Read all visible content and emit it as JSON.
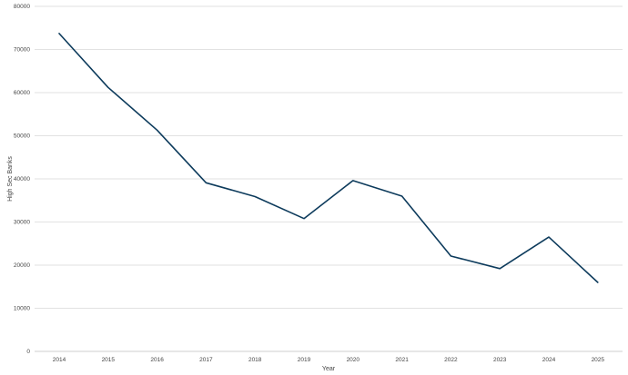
{
  "chart_data": {
    "type": "line",
    "title": "",
    "xlabel": "Year",
    "ylabel": "High Sec Banks",
    "categories": [
      "2014",
      "2015",
      "2016",
      "2017",
      "2018",
      "2019",
      "2020",
      "2021",
      "2022",
      "2023",
      "2024",
      "2025"
    ],
    "series": [
      {
        "values": [
          73700,
          61200,
          51300,
          39100,
          35900,
          30800,
          39600,
          36000,
          22100,
          19200,
          26500,
          16000
        ],
        "color": "#0d3b5c"
      }
    ],
    "ylim": [
      0,
      80000
    ],
    "yticks": [
      "0",
      "10000",
      "20000",
      "30000",
      "40000",
      "50000",
      "60000",
      "70000",
      "80000"
    ],
    "grid": true,
    "legend": "none"
  }
}
